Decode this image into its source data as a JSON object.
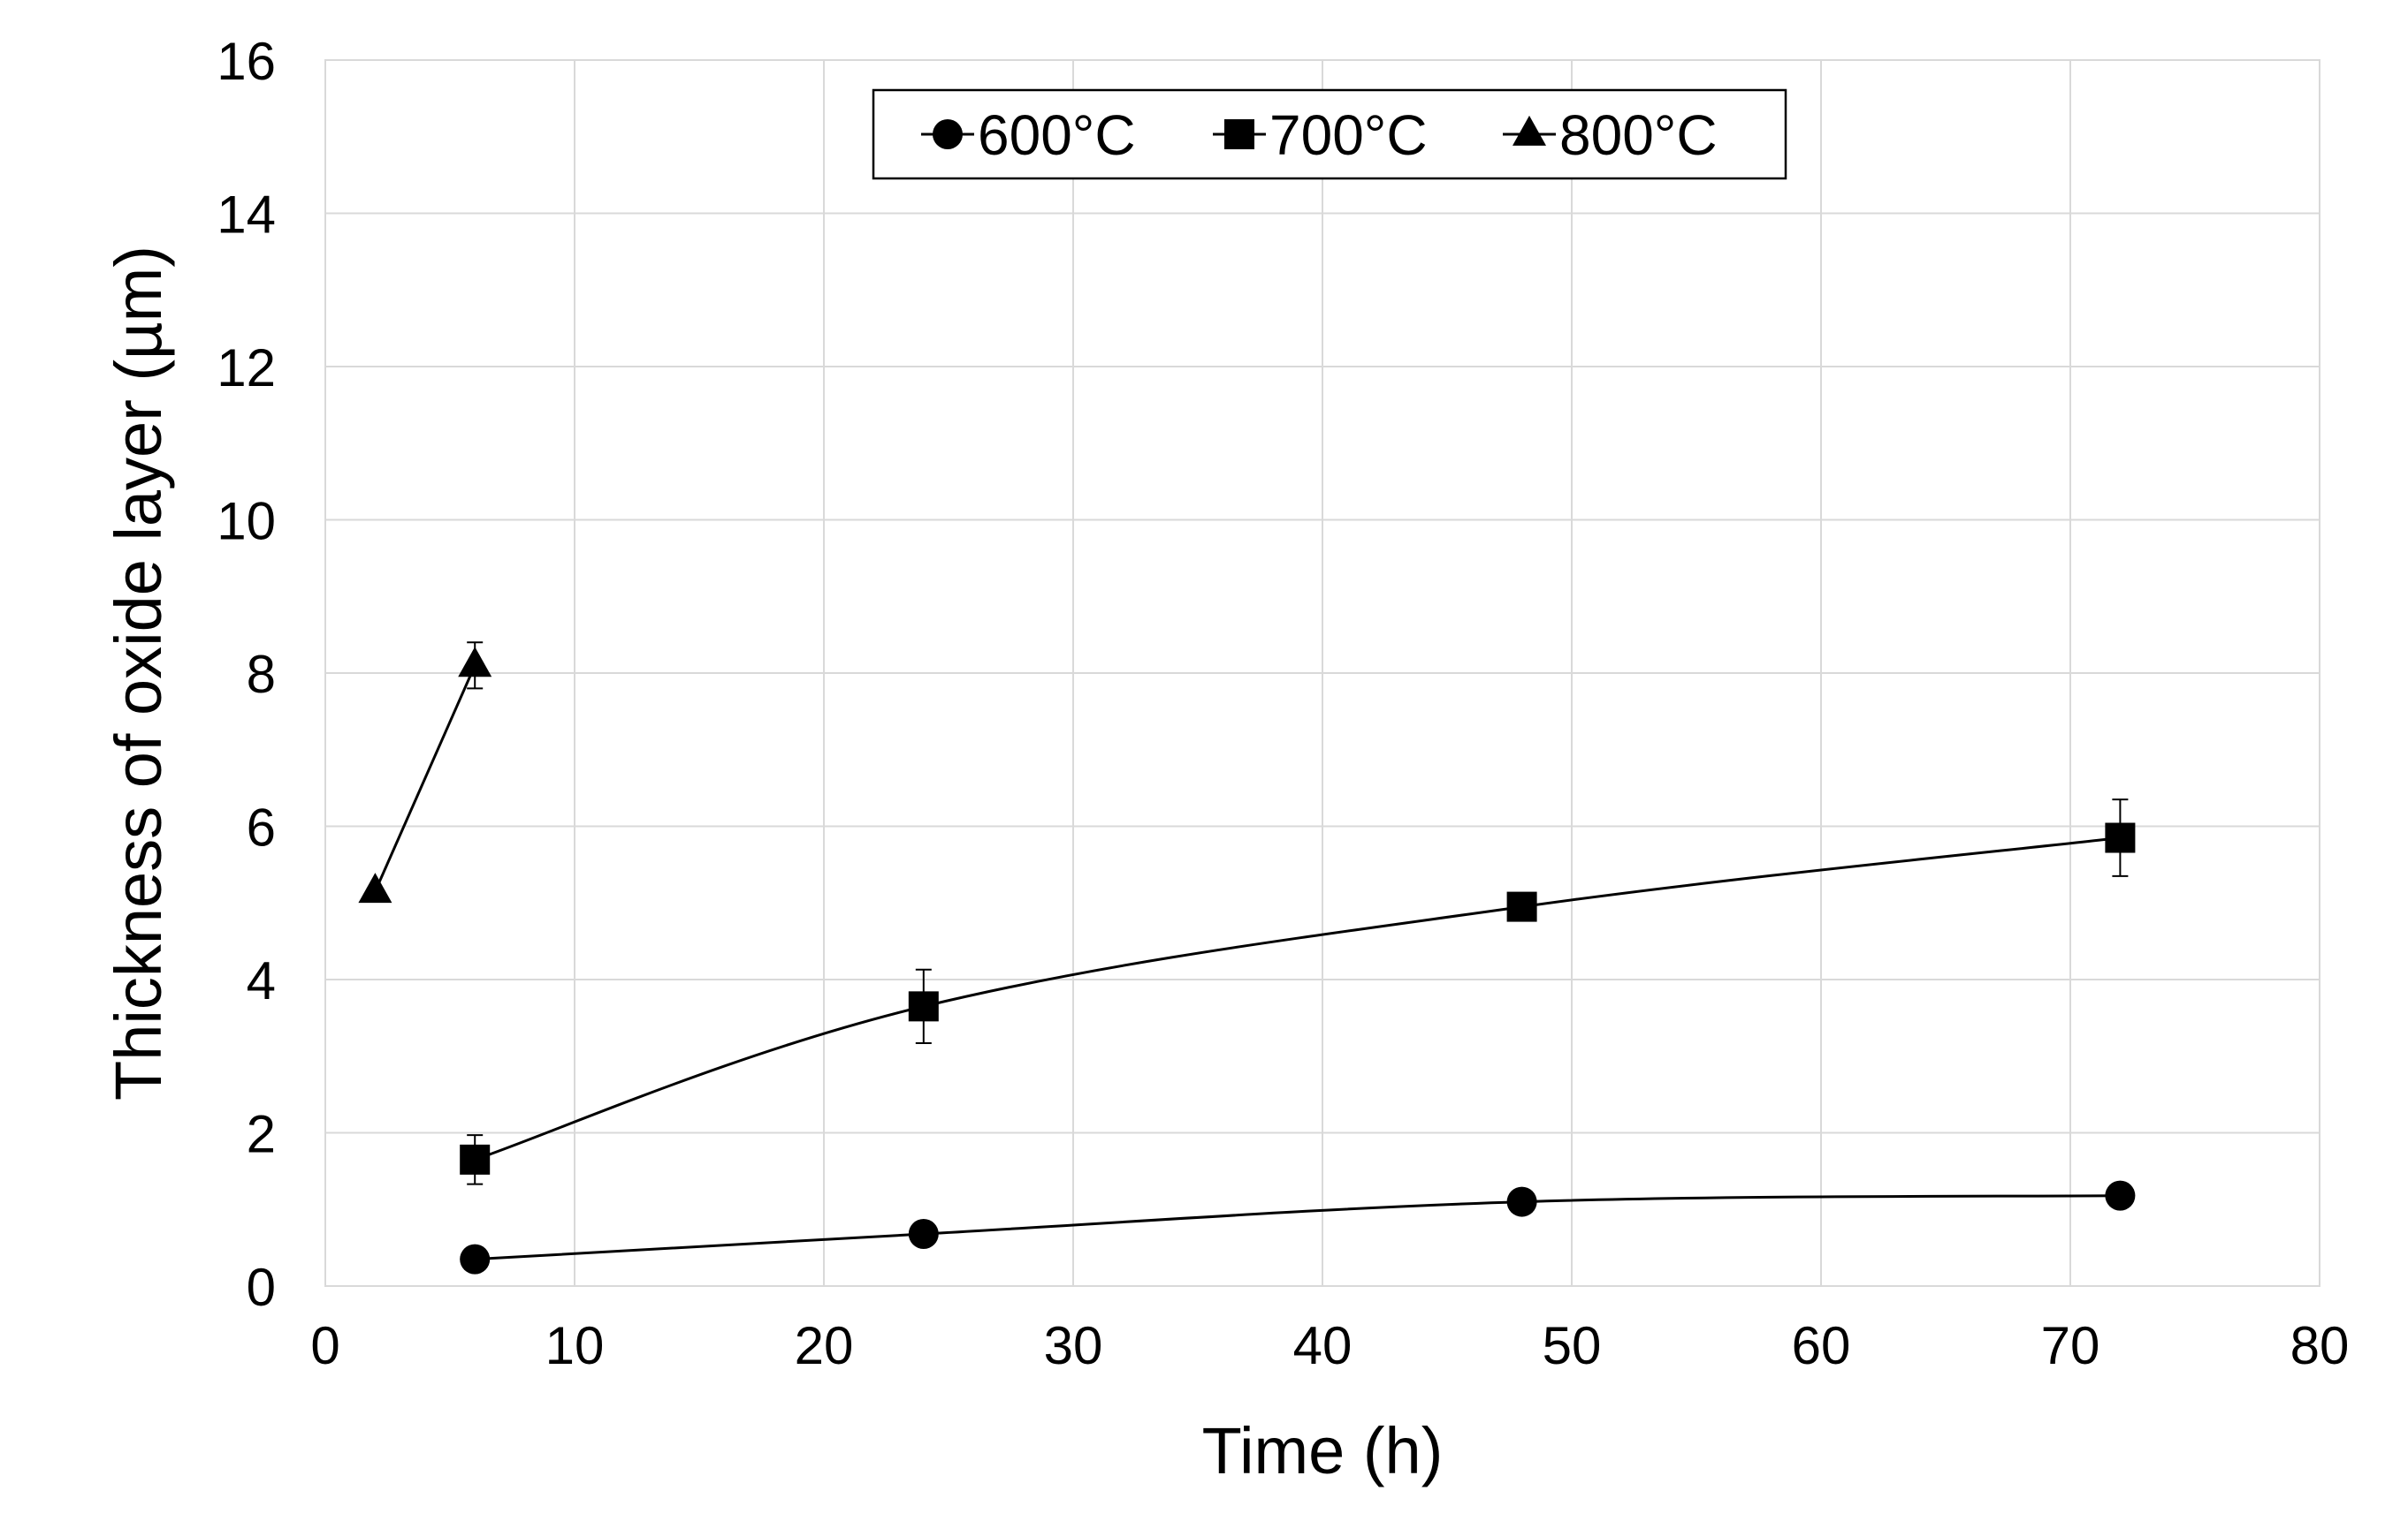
{
  "chart_data": {
    "type": "line",
    "title": "",
    "xlabel": "Time (h)",
    "ylabel": "Thickness of oxide layer (µm)",
    "xlim": [
      0,
      80
    ],
    "ylim": [
      0,
      16
    ],
    "xticks": [
      0,
      10,
      20,
      30,
      40,
      50,
      60,
      70,
      80
    ],
    "yticks": [
      0,
      2,
      4,
      6,
      8,
      10,
      12,
      14,
      16
    ],
    "x_tick_labels": [
      "0",
      "10",
      "20",
      "30",
      "40",
      "50",
      "60",
      "70",
      "80"
    ],
    "y_tick_labels": [
      "0",
      "2",
      "4",
      "6",
      "8",
      "10",
      "12",
      "14",
      "16"
    ],
    "grid": true,
    "legend_position": "top-center",
    "series": [
      {
        "name": "600°C",
        "marker": "circle",
        "x": [
          6,
          24,
          48,
          72
        ],
        "y": [
          0.35,
          0.68,
          1.1,
          1.18
        ],
        "err": [
          0,
          0,
          0,
          0
        ]
      },
      {
        "name": "700°C",
        "marker": "square",
        "x": [
          6,
          24,
          48,
          72
        ],
        "y": [
          1.65,
          3.65,
          4.95,
          5.85
        ],
        "err": [
          0.32,
          0.48,
          0,
          0.5
        ]
      },
      {
        "name": "800°C",
        "marker": "triangle",
        "x": [
          2,
          6
        ],
        "y": [
          5.15,
          8.1
        ],
        "err": [
          0,
          0.3
        ]
      }
    ]
  }
}
